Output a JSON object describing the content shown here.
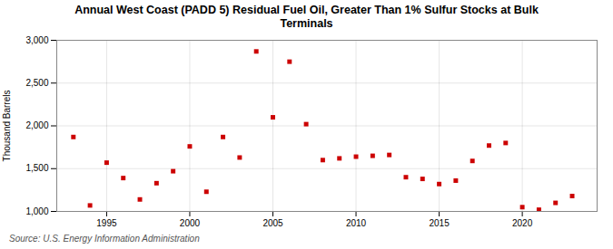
{
  "chart_data": {
    "type": "scatter",
    "title": "Annual West Coast (PADD 5) Residual Fuel Oil, Greater Than 1% Sulfur Stocks at Bulk\nTerminals",
    "ylabel": "Thousand Barrels",
    "source": "Source: U.S. Energy Information Administration",
    "x": [
      1993,
      1994,
      1995,
      1996,
      1997,
      1998,
      1999,
      2000,
      2001,
      2002,
      2003,
      2004,
      2005,
      2006,
      2007,
      2008,
      2009,
      2010,
      2011,
      2012,
      2013,
      2014,
      2015,
      2016,
      2017,
      2018,
      2019,
      2020,
      2021,
      2022,
      2023
    ],
    "values": [
      1870,
      1070,
      1570,
      1390,
      1140,
      1330,
      1470,
      1760,
      1230,
      1870,
      1630,
      2870,
      2100,
      2750,
      2020,
      1600,
      1620,
      1640,
      1650,
      1660,
      1400,
      1380,
      1320,
      1360,
      1590,
      1770,
      1800,
      1050,
      1020,
      1100,
      1180
    ],
    "color": "#cc0000",
    "marker": "square",
    "xlim": [
      1992.0,
      2024.5
    ],
    "xticks": [
      1995,
      2000,
      2005,
      2010,
      2015,
      2020
    ],
    "ylim": [
      1000,
      3000
    ],
    "yticks": [
      {
        "value": 1000,
        "label": "1,000"
      },
      {
        "value": 1500,
        "label": "1,500"
      },
      {
        "value": 2000,
        "label": "2,000"
      },
      {
        "value": 2500,
        "label": "2,500"
      },
      {
        "value": 3000,
        "label": "3,000"
      }
    ],
    "grid": true
  }
}
